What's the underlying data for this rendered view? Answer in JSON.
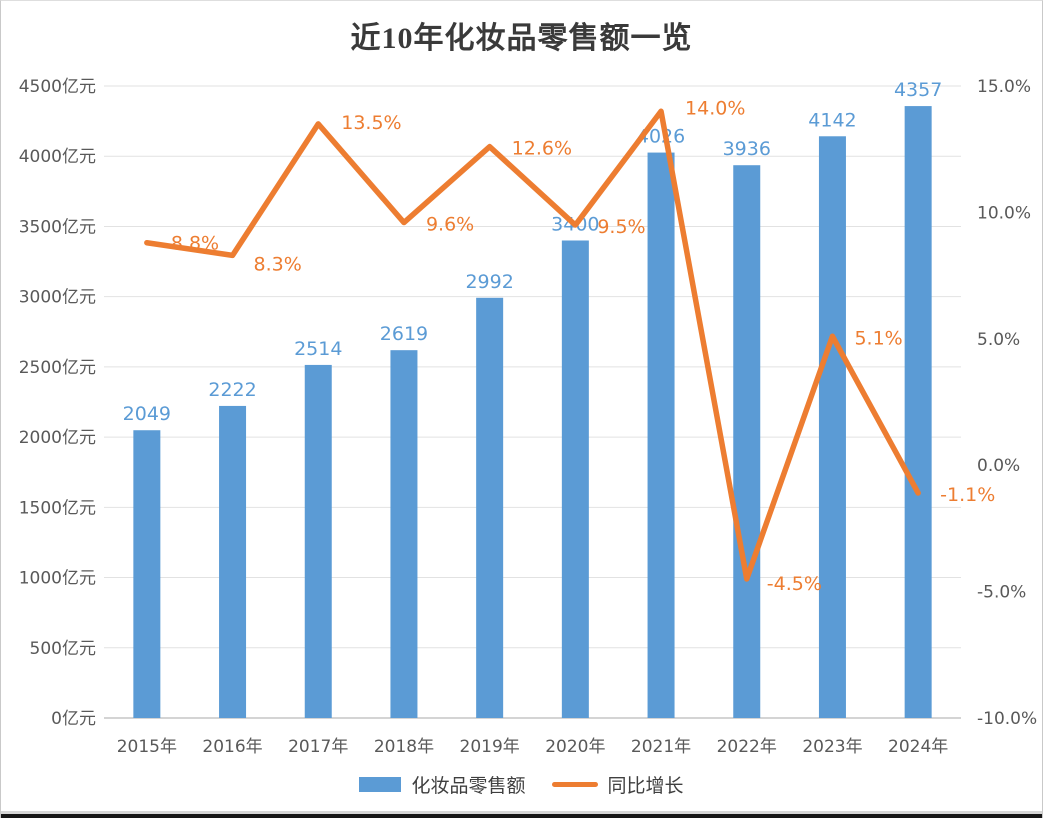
{
  "chart_data": {
    "type": "bar",
    "subtype": "combo-bar-line-dual-axis",
    "title": "近10年化妆品零售额一览",
    "categories": [
      "2015年",
      "2016年",
      "2017年",
      "2018年",
      "2019年",
      "2020年",
      "2021年",
      "2022年",
      "2023年",
      "2024年"
    ],
    "series": [
      {
        "name": "化妆品零售额",
        "type": "bar",
        "axis": "left",
        "color": "#5B9BD5",
        "values": [
          2049,
          2222,
          2514,
          2619,
          2992,
          3400,
          4026,
          3936,
          4142,
          4357
        ],
        "value_labels": [
          "2049",
          "2222",
          "2514",
          "2619",
          "2992",
          "3400",
          "4026",
          "3936",
          "4142",
          "4357"
        ]
      },
      {
        "name": "同比增长",
        "type": "line",
        "axis": "right",
        "color": "#ED7D31",
        "values": [
          8.8,
          8.3,
          13.5,
          9.6,
          12.6,
          9.5,
          14.0,
          -4.5,
          5.1,
          -1.1
        ],
        "value_labels": [
          "8.8%",
          "8.3%",
          "13.5%",
          "9.6%",
          "12.6%",
          "9.5%",
          "14.0%",
          "-4.5%",
          "5.1%",
          "-1.1%"
        ]
      }
    ],
    "left_axis": {
      "min": 0,
      "max": 4500,
      "step": 500,
      "ticks": [
        "0亿元",
        "500亿元",
        "1000亿元",
        "1500亿元",
        "2000亿元",
        "2500亿元",
        "3000亿元",
        "3500亿元",
        "4000亿元",
        "4500亿元"
      ]
    },
    "right_axis": {
      "min": -10,
      "max": 15,
      "step": 5,
      "ticks": [
        "-10.0%",
        "-5.0%",
        "0.0%",
        "5.0%",
        "10.0%",
        "15.0%"
      ]
    },
    "grid": true,
    "legend_position": "bottom",
    "colors": {
      "grid": "#e2e2e2",
      "axis_line": "#c6c6c6",
      "axis_text": "#595959",
      "title_text": "#3a3a3a"
    }
  }
}
